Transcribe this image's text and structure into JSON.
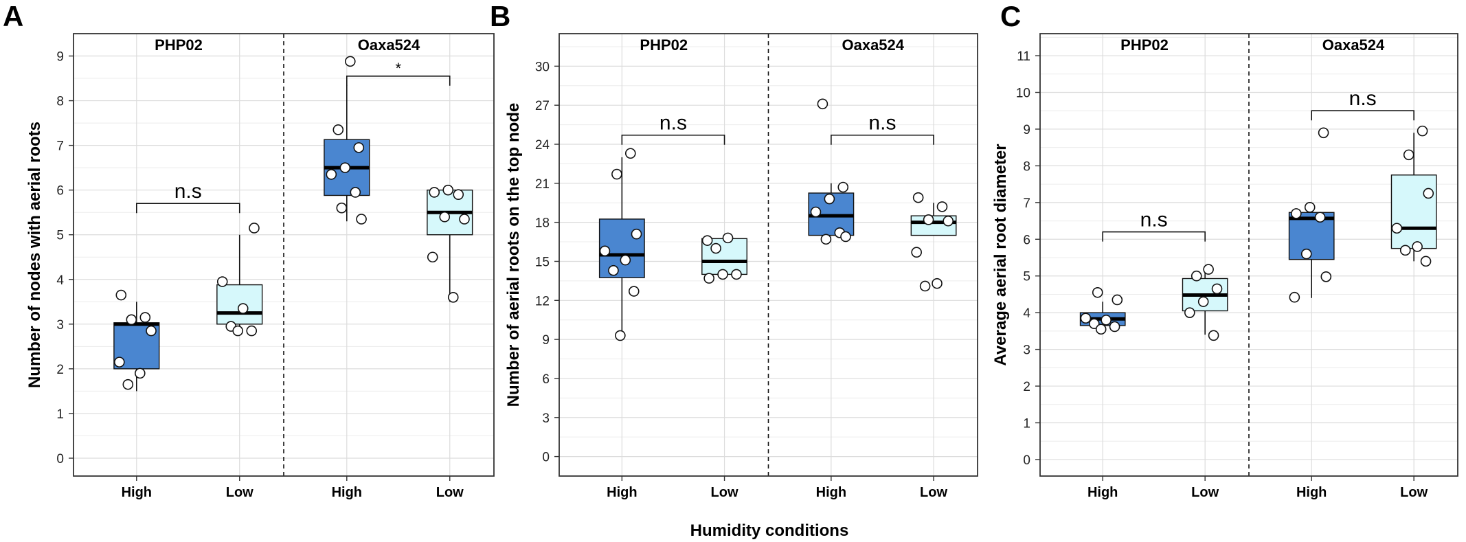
{
  "figure": {
    "xlabel": "Humidity conditions",
    "colors": {
      "high": "#4a86d0",
      "low": "#d6f8fb",
      "grid": "#dcdcdc",
      "frame": "#333333"
    }
  },
  "chart_data": [
    {
      "panel": "A",
      "type": "box",
      "ylabel": "Number of nodes with aerial roots",
      "ylim": [
        -0.4,
        9.5
      ],
      "yticks": [
        0,
        1,
        2,
        3,
        4,
        5,
        6,
        7,
        8,
        9
      ],
      "facets": [
        {
          "name": "PHP02",
          "groups": [
            {
              "label": "High",
              "fill": "high",
              "q1": 2.0,
              "median": 3.0,
              "q3": 3.03,
              "whisker_low": 1.5,
              "whisker_high": 3.5,
              "points": [
                3.65,
                3.15,
                3.1,
                2.85,
                2.15,
                1.9,
                1.65
              ]
            },
            {
              "label": "Low",
              "fill": "low",
              "q1": 3.0,
              "median": 3.25,
              "q3": 3.88,
              "whisker_low": 2.9,
              "whisker_high": 5.0,
              "points": [
                5.15,
                3.95,
                3.35,
                2.95,
                2.85,
                2.85
              ]
            }
          ],
          "annotation": {
            "from": 0,
            "to": 1,
            "y": 5.7,
            "label": "n.s"
          }
        },
        {
          "name": "Oaxa524",
          "groups": [
            {
              "label": "High",
              "fill": "high",
              "q1": 5.88,
              "median": 6.5,
              "q3": 7.13,
              "whisker_low": 5.3,
              "whisker_high": 8.35,
              "points": [
                8.88,
                7.35,
                6.95,
                6.5,
                6.35,
                5.95,
                5.6,
                5.35
              ]
            },
            {
              "label": "Low",
              "fill": "low",
              "q1": 5.0,
              "median": 5.5,
              "q3": 6.0,
              "whisker_low": 3.5,
              "whisker_high": 6.0,
              "points": [
                6.0,
                5.95,
                5.9,
                5.4,
                5.35,
                4.5,
                3.6
              ]
            }
          ],
          "annotation": {
            "from": 0,
            "to": 1,
            "y": 8.55,
            "label": "*"
          }
        }
      ]
    },
    {
      "panel": "B",
      "type": "box",
      "ylabel": "Number of aerial roots on the top node",
      "ylim": [
        -1.5,
        32.5
      ],
      "yticks": [
        0,
        3,
        6,
        9,
        12,
        15,
        18,
        21,
        24,
        27,
        30
      ],
      "facets": [
        {
          "name": "PHP02",
          "groups": [
            {
              "label": "High",
              "fill": "high",
              "q1": 13.75,
              "median": 15.5,
              "q3": 18.25,
              "whisker_low": 9.0,
              "whisker_high": 23.0,
              "points": [
                23.3,
                21.7,
                17.1,
                15.8,
                15.1,
                14.3,
                12.7,
                9.3
              ]
            },
            {
              "label": "Low",
              "fill": "low",
              "q1": 14.0,
              "median": 15.0,
              "q3": 16.75,
              "whisker_low": 14.0,
              "whisker_high": 16.75,
              "points": [
                16.6,
                16.8,
                16.0,
                14.0,
                14.0,
                13.7
              ]
            }
          ],
          "annotation": {
            "from": 0,
            "to": 1,
            "y": 24.7,
            "label": "n.s"
          }
        },
        {
          "name": "Oaxa524",
          "groups": [
            {
              "label": "High",
              "fill": "high",
              "q1": 17.0,
              "median": 18.5,
              "q3": 20.25,
              "whisker_low": 17.0,
              "whisker_high": 21.0,
              "points": [
                27.1,
                20.7,
                19.8,
                18.8,
                17.2,
                16.7,
                16.9
              ]
            },
            {
              "label": "Low",
              "fill": "low",
              "q1": 17.0,
              "median": 18.0,
              "q3": 18.5,
              "whisker_low": 17.0,
              "whisker_high": 19.5,
              "points": [
                19.9,
                19.2,
                18.2,
                18.1,
                15.7,
                13.3,
                13.1
              ]
            }
          ],
          "annotation": {
            "from": 0,
            "to": 1,
            "y": 24.7,
            "label": "n.s"
          }
        }
      ]
    },
    {
      "panel": "C",
      "type": "box",
      "ylabel": "Average aerial root diameter",
      "ylim": [
        -0.45,
        11.6
      ],
      "yticks": [
        0,
        1,
        2,
        3,
        4,
        5,
        6,
        7,
        8,
        9,
        10,
        11
      ],
      "facets": [
        {
          "name": "PHP02",
          "groups": [
            {
              "label": "High",
              "fill": "high",
              "q1": 3.65,
              "median": 3.83,
              "q3": 4.0,
              "whisker_low": 3.55,
              "whisker_high": 4.3,
              "points": [
                4.55,
                4.35,
                3.85,
                3.8,
                3.7,
                3.62,
                3.55
              ]
            },
            {
              "label": "Low",
              "fill": "low",
              "q1": 4.05,
              "median": 4.48,
              "q3": 4.93,
              "whisker_low": 3.4,
              "whisker_high": 5.2,
              "points": [
                5.18,
                5.0,
                4.65,
                4.3,
                4.0,
                3.38
              ]
            }
          ],
          "annotation": {
            "from": 0,
            "to": 1,
            "y": 6.2,
            "label": "n.s"
          }
        },
        {
          "name": "Oaxa524",
          "groups": [
            {
              "label": "High",
              "fill": "high",
              "q1": 5.45,
              "median": 6.57,
              "q3": 6.73,
              "whisker_low": 4.4,
              "whisker_high": 6.73,
              "points": [
                8.9,
                6.87,
                6.7,
                6.6,
                5.6,
                4.98,
                4.42
              ]
            },
            {
              "label": "Low",
              "fill": "low",
              "q1": 5.75,
              "median": 6.3,
              "q3": 7.75,
              "whisker_low": 5.4,
              "whisker_high": 8.9,
              "points": [
                8.95,
                8.3,
                7.25,
                6.3,
                5.8,
                5.7,
                5.4
              ]
            }
          ],
          "annotation": {
            "from": 0,
            "to": 1,
            "y": 9.5,
            "label": "n.s"
          }
        }
      ]
    }
  ]
}
